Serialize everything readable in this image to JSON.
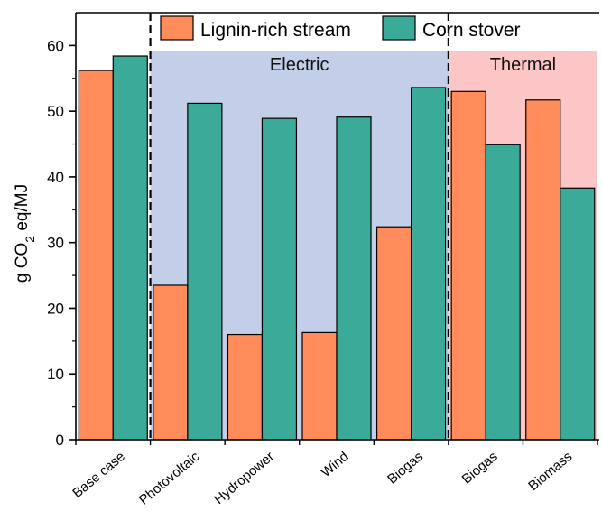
{
  "chart_data": {
    "type": "bar",
    "title": "",
    "xlabel": "",
    "ylabel": {
      "prefix": "g CO",
      "subscript": "2",
      "suffix": " eq/MJ"
    },
    "ylim": [
      0,
      65
    ],
    "yticks": [
      0,
      10,
      20,
      30,
      40,
      50,
      60
    ],
    "grid": false,
    "legend_position": "top",
    "categories": [
      "Base case",
      "Photovoltaic",
      "Hydropower",
      "Wind",
      "Biogas",
      "Biogas",
      "Biomass"
    ],
    "series": [
      {
        "name": "Lignin-rich stream",
        "color": "#FF8C5A",
        "values": [
          56.2,
          23.5,
          16.0,
          16.3,
          32.4,
          53.0,
          51.7
        ]
      },
      {
        "name": "Corn stover",
        "color": "#3BAA98",
        "values": [
          58.4,
          51.2,
          48.9,
          49.1,
          53.6,
          44.9,
          38.3
        ]
      }
    ],
    "regions": [
      {
        "label": "Electric",
        "color": "#C3CFE8",
        "categories": [
          "Photovoltaic",
          "Hydropower",
          "Wind",
          "Biogas"
        ]
      },
      {
        "label": "Thermal",
        "color": "#FCC6C6",
        "categories": [
          "Biogas",
          "Biomass"
        ]
      }
    ]
  }
}
